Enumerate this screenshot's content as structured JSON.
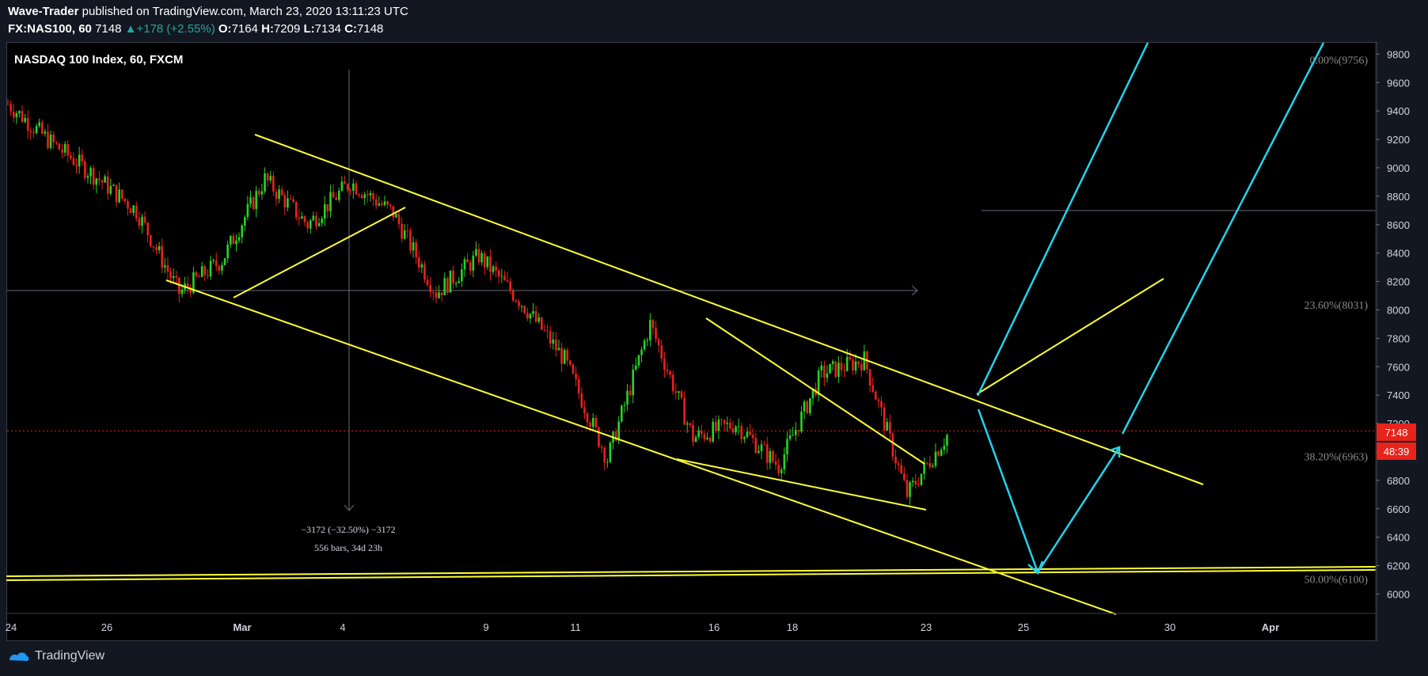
{
  "header": {
    "author": "Wave-Trader",
    "published_text": "published on TradingView.com, March 23, 2020 13:11:23 UTC",
    "symbol": "FX:NAS100, 60",
    "last": "7148",
    "change": "+178 (+2.55%)",
    "o_label": "O:",
    "o": "7164",
    "h_label": "H:",
    "h": "7209",
    "l_label": "L:",
    "l": "7134",
    "c_label": "C:",
    "c": "7148"
  },
  "chart_title": "NASDAQ 100 Index, 60, FXCM",
  "measure": {
    "line1": "−3172 (−32.50%) −3172",
    "line2": "556 bars, 34d 23h"
  },
  "price_badge": {
    "value": "7148",
    "countdown": "48:39"
  },
  "footer": {
    "brand": "TradingView"
  },
  "colors": {
    "up": "#26d426",
    "down": "#e8231c",
    "trend": "#ffff33",
    "projection": "#22d3ee",
    "price_line": "#e8231c"
  },
  "chart_data": {
    "type": "candlestick",
    "title": "NASDAQ 100 Index, 60, FXCM",
    "ylim": [
      5880,
      9880
    ],
    "y_ticks": [
      6000,
      6200,
      6400,
      6600,
      6800,
      7000,
      7200,
      7400,
      7600,
      7800,
      8000,
      8200,
      8400,
      8600,
      8800,
      9000,
      9200,
      9400,
      9600,
      9800
    ],
    "x_ticks": [
      "24",
      "26",
      "Mar",
      "4",
      "9",
      "11",
      "16",
      "18",
      "23",
      "25",
      "30",
      "Apr"
    ],
    "price_path": [
      [
        "24",
        9450
      ],
      [
        "25",
        9180
      ],
      [
        "26",
        8950
      ],
      [
        "27",
        8700
      ],
      [
        "28",
        8120
      ],
      [
        "Mar",
        8350
      ],
      [
        "3",
        8920
      ],
      [
        "4",
        8600
      ],
      [
        "5",
        8900
      ],
      [
        "6",
        8680
      ],
      [
        "9",
        8120
      ],
      [
        "10",
        8380
      ],
      [
        "11",
        8050
      ],
      [
        "12",
        7650
      ],
      [
        "13",
        6950
      ],
      [
        "16",
        7900
      ],
      [
        "17",
        7100
      ],
      [
        "18",
        7200
      ],
      [
        "19",
        6900
      ],
      [
        "20",
        7550
      ],
      [
        "22",
        7650
      ],
      [
        "23",
        6700
      ],
      [
        "23",
        7148
      ]
    ],
    "fib_levels": [
      {
        "label": "0.00%(9756)",
        "value": 9756
      },
      {
        "label": "23.60%(8031)",
        "value": 8031
      },
      {
        "label": "38.20%(6963)",
        "value": 6963
      },
      {
        "label": "50.00%(6100)",
        "value": 6100
      }
    ],
    "last_price": 7148
  }
}
